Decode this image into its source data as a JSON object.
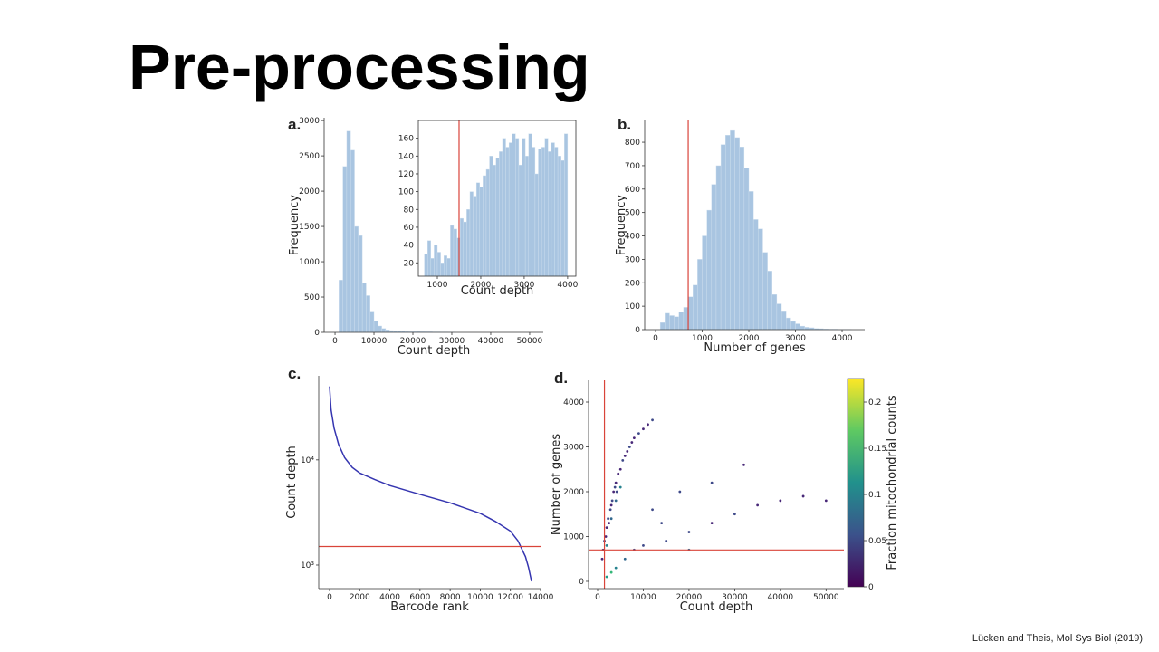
{
  "slide": {
    "title": "Pre-processing",
    "citation": "Lücken and Theis, Mol Sys Biol (2019)"
  },
  "chart_data": [
    {
      "type": "histogram",
      "panel_label": "a.",
      "xlabel": "Count depth",
      "ylabel": "Frequency",
      "color": "#a9c5e1",
      "bins": [
        1000,
        2000,
        3000,
        4000,
        5000,
        6000,
        7000,
        8000,
        9000,
        10000,
        11000,
        12000,
        13000,
        14000,
        15000,
        16000,
        17000,
        18000,
        19000,
        20000,
        21000,
        22000,
        23000,
        24000,
        25000,
        26000,
        27000,
        28000,
        29000,
        30000,
        31000
      ],
      "values": [
        740,
        2350,
        2850,
        2580,
        1500,
        1370,
        700,
        520,
        300,
        160,
        90,
        55,
        35,
        25,
        20,
        18,
        15,
        12,
        10,
        10,
        12,
        10,
        8,
        8,
        6,
        6,
        5,
        5,
        4,
        4
      ],
      "xlim": [
        -2800,
        53500
      ],
      "ylim": [
        0,
        3040
      ],
      "xticks": [
        0,
        10000,
        20000,
        30000,
        40000,
        50000
      ],
      "yticks": [
        0,
        500,
        1000,
        1500,
        2000,
        2500,
        3000
      ]
    },
    {
      "type": "histogram",
      "xlabel": "Count depth",
      "color": "#a9c5e1",
      "threshold_x": 1500,
      "threshold_color": "#d9443a",
      "bins": [
        700,
        775,
        850,
        925,
        1000,
        1075,
        1150,
        1225,
        1300,
        1375,
        1450,
        1525,
        1600,
        1675,
        1750,
        1825,
        1900,
        1975,
        2050,
        2125,
        2200,
        2275,
        2350,
        2425,
        2500,
        2575,
        2650,
        2725,
        2800,
        2875,
        2950,
        3025,
        3100,
        3175,
        3250,
        3325,
        3400,
        3475,
        3550,
        3625,
        3700,
        3775,
        3850,
        3925,
        4000
      ],
      "values": [
        30,
        45,
        25,
        40,
        32,
        20,
        28,
        25,
        62,
        58,
        48,
        70,
        66,
        80,
        100,
        95,
        110,
        105,
        118,
        125,
        140,
        130,
        138,
        145,
        160,
        150,
        155,
        165,
        160,
        130,
        160,
        140,
        165,
        150,
        120,
        148,
        150,
        160,
        145,
        155,
        150,
        140,
        135,
        165
      ],
      "xlim": [
        562,
        4190
      ],
      "ylim": [
        5,
        180
      ],
      "xticks": [
        1000,
        2000,
        3000,
        4000
      ],
      "yticks": [
        20,
        40,
        60,
        80,
        100,
        120,
        140,
        160
      ]
    },
    {
      "type": "histogram",
      "panel_label": "b.",
      "xlabel": "Number of genes",
      "ylabel": "Frequency",
      "color": "#a9c5e1",
      "threshold_x": 700,
      "threshold_color": "#d9443a",
      "bins": [
        100,
        200,
        300,
        400,
        500,
        600,
        700,
        800,
        900,
        1000,
        1100,
        1200,
        1300,
        1400,
        1500,
        1600,
        1700,
        1800,
        1900,
        2000,
        2100,
        2200,
        2300,
        2400,
        2500,
        2600,
        2700,
        2800,
        2900,
        3000,
        3100,
        3200,
        3300,
        3400,
        3500,
        3600,
        3700,
        3800,
        3900,
        4000,
        4100,
        4200
      ],
      "values": [
        30,
        70,
        60,
        55,
        75,
        95,
        140,
        190,
        300,
        400,
        510,
        620,
        700,
        790,
        830,
        850,
        820,
        780,
        690,
        590,
        470,
        430,
        330,
        250,
        150,
        110,
        80,
        50,
        35,
        25,
        15,
        10,
        8,
        5,
        4,
        3,
        2,
        2,
        1,
        1,
        1
      ],
      "xlim": [
        -233,
        4485
      ],
      "ylim": [
        0,
        893
      ],
      "xticks": [
        0,
        1000,
        2000,
        3000,
        4000
      ],
      "yticks": [
        0,
        100,
        200,
        300,
        400,
        500,
        600,
        700,
        800
      ]
    },
    {
      "type": "line",
      "panel_label": "c.",
      "xlabel": "Barcode rank",
      "ylabel": "Count depth",
      "color": "#3535b0",
      "log_y": true,
      "threshold_y": 1500,
      "threshold_color": "#d9443a",
      "x": [
        0,
        100,
        300,
        600,
        1000,
        1500,
        2000,
        3000,
        4000,
        6000,
        8000,
        10000,
        11000,
        12000,
        12500,
        13000,
        13200,
        13400
      ],
      "values": [
        50000,
        30000,
        20000,
        14000,
        10500,
        8500,
        7500,
        6500,
        5700,
        4700,
        3900,
        3100,
        2600,
        2100,
        1700,
        1200,
        950,
        700
      ],
      "xlim": [
        -720,
        14000
      ],
      "ylim": [
        597,
        63000
      ],
      "xticks": [
        0,
        2000,
        4000,
        6000,
        8000,
        10000,
        12000,
        14000
      ],
      "yticks": [
        {
          "value": 1000,
          "label": "10³"
        },
        {
          "value": 10000,
          "label": "10⁴"
        }
      ]
    },
    {
      "type": "scatter",
      "panel_label": "d.",
      "xlabel": "Count depth",
      "ylabel": "Number of genes",
      "colormap": "viridis",
      "threshold_x": 1500,
      "threshold_y": 700,
      "threshold_color": "#d9443a",
      "colorbar_label": "Fraction mitochondrial counts",
      "clim": [
        0,
        0.2255
      ],
      "cticks": [
        0,
        0.05,
        0.1,
        0.15,
        0.2
      ],
      "x": [
        1000,
        1200,
        1500,
        1800,
        2000,
        2300,
        2500,
        2800,
        3000,
        3200,
        3500,
        3800,
        4000,
        4200,
        4500,
        5000,
        5500,
        6000,
        6500,
        7000,
        7500,
        8000,
        9000,
        10000,
        11000,
        12000,
        3000,
        4000,
        5000,
        2000,
        2000,
        3000,
        4000,
        6000,
        8000,
        10000,
        15000,
        20000,
        25000,
        30000,
        35000,
        40000,
        45000,
        50000,
        12000,
        18000,
        25000,
        32000,
        20000,
        14000
      ],
      "values": [
        500,
        700,
        900,
        1000,
        1200,
        1400,
        1300,
        1600,
        1700,
        1800,
        2000,
        2100,
        2200,
        2000,
        2400,
        2500,
        2700,
        2800,
        2900,
        3000,
        3100,
        3200,
        3300,
        3400,
        3500,
        3600,
        1400,
        1800,
        2100,
        800,
        100,
        200,
        300,
        500,
        700,
        800,
        900,
        1100,
        1300,
        1500,
        1700,
        1800,
        1900,
        1800,
        1600,
        2000,
        2200,
        2600,
        700,
        1300
      ],
      "c": [
        0.03,
        0.05,
        0.04,
        0.02,
        0.03,
        0.06,
        0.02,
        0.04,
        0.03,
        0.05,
        0.02,
        0.04,
        0.03,
        0.06,
        0.02,
        0.03,
        0.04,
        0.02,
        0.03,
        0.05,
        0.02,
        0.03,
        0.04,
        0.02,
        0.03,
        0.05,
        0.08,
        0.07,
        0.09,
        0.1,
        0.12,
        0.15,
        0.1,
        0.08,
        0.06,
        0.05,
        0.04,
        0.05,
        0.03,
        0.04,
        0.03,
        0.02,
        0.03,
        0.02,
        0.06,
        0.04,
        0.05,
        0.03,
        0.07,
        0.05
      ],
      "xlim": [
        -1980,
        53900
      ],
      "ylim": [
        -162,
        4485
      ],
      "xticks": [
        0,
        10000,
        20000,
        30000,
        40000,
        50000
      ],
      "yticks": [
        0,
        1000,
        2000,
        3000,
        4000
      ]
    }
  ]
}
